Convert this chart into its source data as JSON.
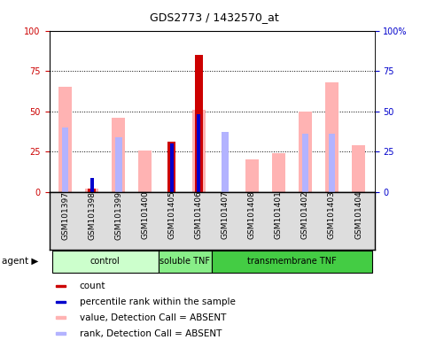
{
  "title": "GDS2773 / 1432570_at",
  "samples": [
    "GSM101397",
    "GSM101398",
    "GSM101399",
    "GSM101400",
    "GSM101405",
    "GSM101406",
    "GSM101407",
    "GSM101408",
    "GSM101401",
    "GSM101402",
    "GSM101403",
    "GSM101404"
  ],
  "groups": [
    {
      "label": "control",
      "color": "#ccffcc",
      "span": [
        0,
        4
      ]
    },
    {
      "label": "soluble TNF",
      "color": "#88ee88",
      "span": [
        4,
        6
      ]
    },
    {
      "label": "transmembrane TNF",
      "color": "#44cc44",
      "span": [
        6,
        12
      ]
    }
  ],
  "value_absent": [
    65,
    2,
    46,
    26,
    0,
    51,
    0,
    20,
    24,
    50,
    68,
    29
  ],
  "rank_absent": [
    40,
    0,
    34,
    0,
    0,
    0,
    37,
    0,
    0,
    36,
    36,
    0
  ],
  "count": [
    0,
    2,
    0,
    0,
    31,
    85,
    0,
    0,
    0,
    0,
    0,
    0
  ],
  "percentile": [
    0,
    9,
    0,
    0,
    30,
    48,
    0,
    0,
    0,
    0,
    0,
    0
  ],
  "ylim": [
    0,
    100
  ],
  "yticks": [
    0,
    25,
    50,
    75,
    100
  ],
  "color_value_absent": "#ffb3b3",
  "color_rank_absent": "#b3b3ff",
  "color_count": "#cc0000",
  "color_percentile": "#0000cc",
  "left_tick_color": "#cc0000",
  "right_tick_color": "#0000cc"
}
